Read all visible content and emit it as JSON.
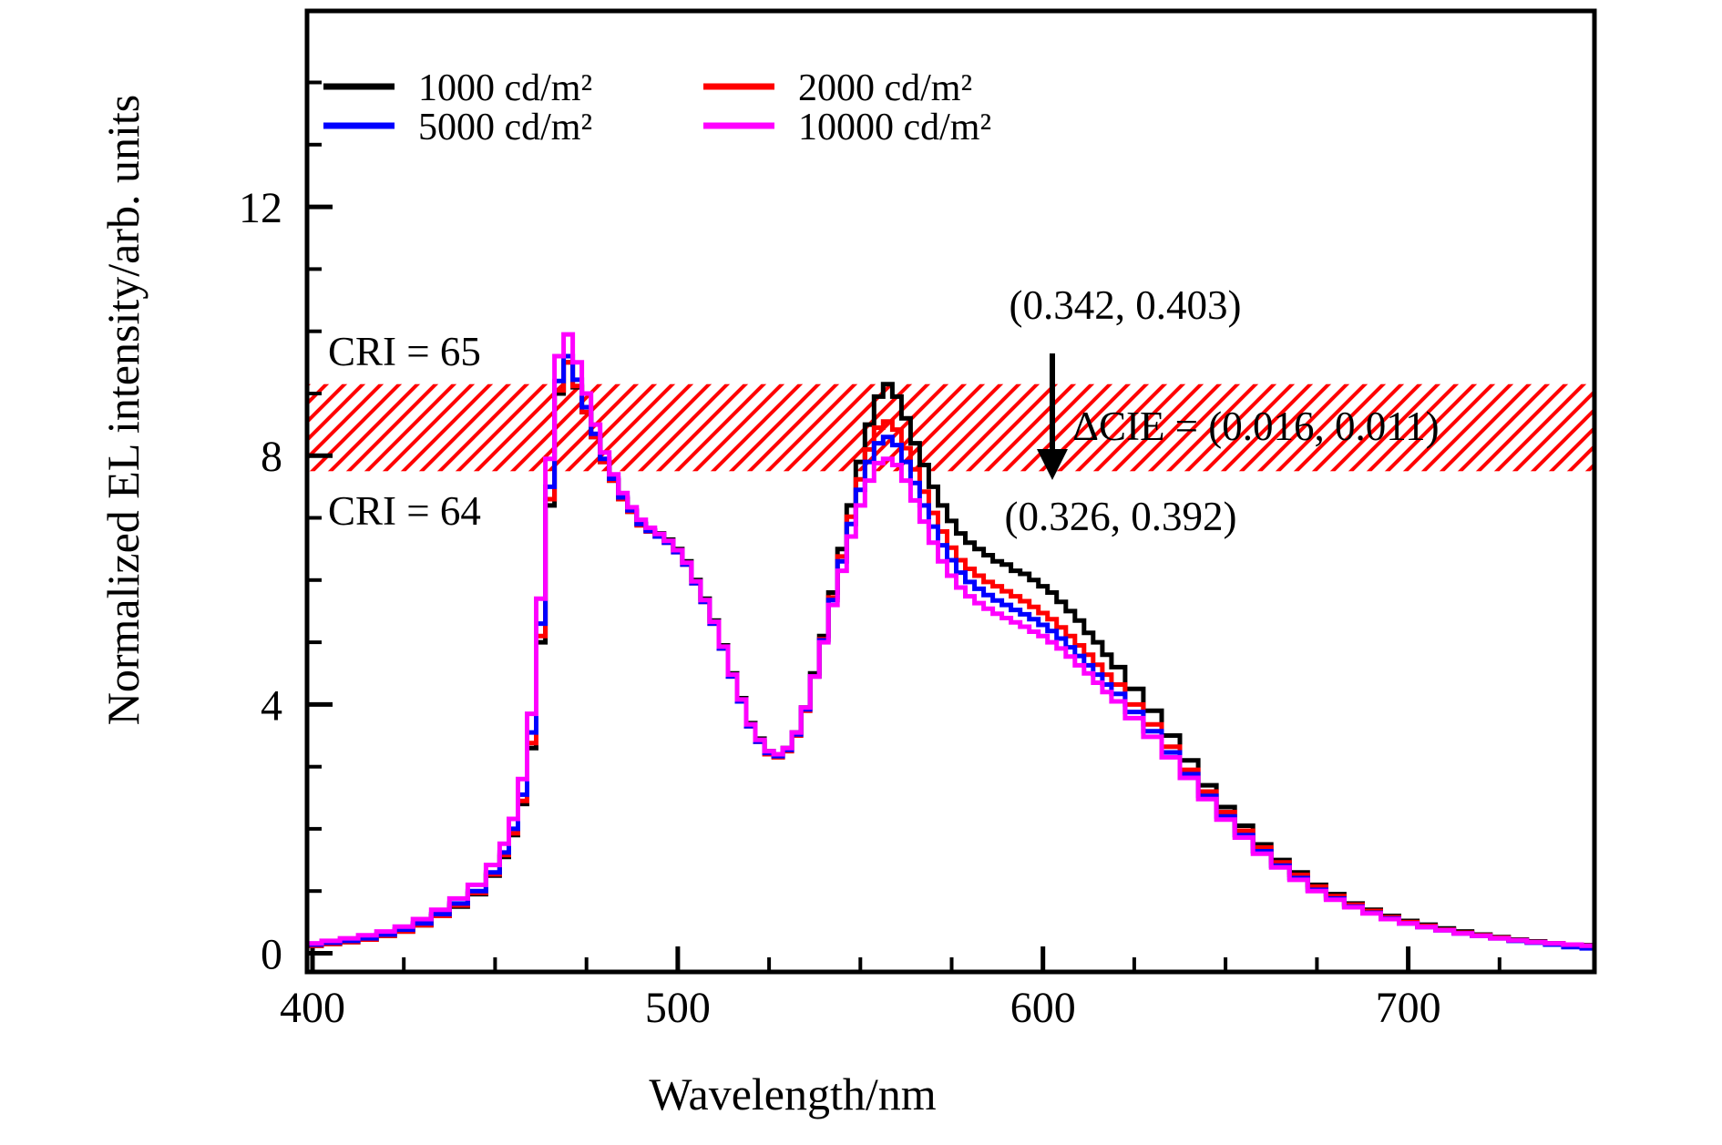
{
  "chart_data": {
    "type": "line",
    "title": "",
    "xlabel": "Wavelength/nm",
    "ylabel": "Normalized EL intensity/arb. units",
    "xlim": [
      398.5,
      751
    ],
    "ylim": [
      -0.3,
      15.15
    ],
    "x_major_ticks": [
      400,
      500,
      600,
      700
    ],
    "x_minor_step": 25,
    "y_major_ticks": [
      0,
      4,
      8,
      12
    ],
    "y_minor_step": 1,
    "grid": false,
    "legend_position": "top-left-inside",
    "x": [
      400,
      405,
      410,
      415,
      420,
      425,
      430,
      435,
      440,
      445,
      450,
      452.5,
      455,
      457.5,
      460,
      462.5,
      465,
      467.5,
      470,
      472.5,
      475,
      477.5,
      480,
      482.5,
      485,
      487.5,
      490,
      492.5,
      495,
      497.5,
      500,
      502.5,
      505,
      507.5,
      510,
      512.5,
      515,
      517.5,
      520,
      522.5,
      525,
      527.5,
      530,
      532.5,
      535,
      537.5,
      540,
      542.5,
      545,
      547.5,
      550,
      552.5,
      555,
      557.5,
      560,
      562.5,
      565,
      567.5,
      570,
      572.5,
      575,
      577.5,
      580,
      582.5,
      585,
      587.5,
      590,
      592.5,
      595,
      597.5,
      600,
      602.5,
      605,
      607.5,
      610,
      612.5,
      615,
      617.5,
      620,
      625,
      630,
      635,
      640,
      645,
      650,
      655,
      660,
      665,
      670,
      675,
      680,
      685,
      690,
      695,
      700,
      705,
      710,
      715,
      720,
      725,
      730,
      735,
      740,
      745,
      750
    ],
    "series": [
      {
        "name": "1000 cd/m²",
        "color": "#000000",
        "values": [
          0.12,
          0.15,
          0.18,
          0.22,
          0.28,
          0.35,
          0.45,
          0.6,
          0.75,
          0.95,
          1.25,
          1.55,
          1.9,
          2.4,
          3.3,
          5.0,
          7.2,
          9.0,
          9.5,
          9.1,
          8.7,
          8.3,
          7.9,
          7.6,
          7.3,
          7.1,
          6.9,
          6.8,
          6.75,
          6.65,
          6.5,
          6.3,
          6.0,
          5.7,
          5.35,
          4.95,
          4.5,
          4.1,
          3.7,
          3.45,
          3.25,
          3.2,
          3.3,
          3.55,
          3.95,
          4.5,
          5.1,
          5.8,
          6.5,
          7.2,
          7.9,
          8.5,
          8.95,
          9.15,
          8.95,
          8.6,
          8.2,
          7.85,
          7.5,
          7.2,
          6.95,
          6.75,
          6.6,
          6.5,
          6.4,
          6.3,
          6.25,
          6.15,
          6.1,
          6.0,
          5.9,
          5.8,
          5.65,
          5.5,
          5.35,
          5.15,
          5.0,
          4.8,
          4.6,
          4.25,
          3.9,
          3.5,
          3.1,
          2.7,
          2.35,
          2.05,
          1.75,
          1.5,
          1.3,
          1.1,
          0.95,
          0.8,
          0.7,
          0.6,
          0.52,
          0.46,
          0.4,
          0.35,
          0.3,
          0.26,
          0.22,
          0.19,
          0.16,
          0.14,
          0.13
        ]
      },
      {
        "name": "2000 cd/m²",
        "color": "#ff0000",
        "values": [
          0.12,
          0.15,
          0.18,
          0.22,
          0.28,
          0.35,
          0.45,
          0.6,
          0.77,
          0.97,
          1.27,
          1.58,
          1.93,
          2.45,
          3.38,
          5.1,
          7.3,
          9.05,
          9.5,
          9.12,
          8.7,
          8.3,
          7.9,
          7.6,
          7.3,
          7.1,
          6.88,
          6.78,
          6.7,
          6.6,
          6.45,
          6.25,
          5.95,
          5.65,
          5.3,
          4.9,
          4.45,
          4.05,
          3.65,
          3.4,
          3.2,
          3.15,
          3.25,
          3.5,
          3.9,
          4.45,
          5.05,
          5.72,
          6.38,
          7.02,
          7.62,
          8.1,
          8.45,
          8.55,
          8.42,
          8.12,
          7.78,
          7.42,
          7.08,
          6.78,
          6.52,
          6.32,
          6.18,
          6.07,
          5.97,
          5.9,
          5.82,
          5.74,
          5.66,
          5.57,
          5.47,
          5.37,
          5.24,
          5.1,
          4.95,
          4.8,
          4.64,
          4.48,
          4.32,
          4.0,
          3.68,
          3.32,
          2.95,
          2.6,
          2.27,
          1.97,
          1.7,
          1.46,
          1.26,
          1.07,
          0.92,
          0.78,
          0.68,
          0.58,
          0.5,
          0.44,
          0.38,
          0.33,
          0.29,
          0.25,
          0.21,
          0.18,
          0.155,
          0.135,
          0.12
        ]
      },
      {
        "name": "5000 cd/m²",
        "color": "#0000ff",
        "values": [
          0.14,
          0.17,
          0.2,
          0.24,
          0.3,
          0.38,
          0.48,
          0.63,
          0.8,
          1.0,
          1.3,
          1.62,
          2.0,
          2.55,
          3.55,
          5.3,
          7.5,
          9.2,
          9.6,
          9.22,
          8.78,
          8.35,
          7.95,
          7.63,
          7.33,
          7.12,
          6.9,
          6.79,
          6.7,
          6.6,
          6.45,
          6.25,
          5.95,
          5.65,
          5.3,
          4.9,
          4.45,
          4.05,
          3.65,
          3.4,
          3.22,
          3.17,
          3.27,
          3.52,
          3.92,
          4.45,
          5.03,
          5.68,
          6.3,
          6.9,
          7.45,
          7.9,
          8.2,
          8.3,
          8.17,
          7.9,
          7.56,
          7.2,
          6.86,
          6.56,
          6.32,
          6.12,
          5.97,
          5.86,
          5.76,
          5.67,
          5.6,
          5.52,
          5.45,
          5.37,
          5.28,
          5.18,
          5.06,
          4.92,
          4.78,
          4.63,
          4.48,
          4.32,
          4.17,
          3.88,
          3.57,
          3.23,
          2.88,
          2.53,
          2.2,
          1.9,
          1.64,
          1.41,
          1.21,
          1.02,
          0.88,
          0.75,
          0.65,
          0.56,
          0.48,
          0.42,
          0.37,
          0.32,
          0.28,
          0.24,
          0.2,
          0.17,
          0.14,
          0.1,
          0.08
        ]
      },
      {
        "name": "10000 cd/m²",
        "color": "#ff00ff",
        "values": [
          0.16,
          0.2,
          0.24,
          0.29,
          0.35,
          0.43,
          0.55,
          0.7,
          0.88,
          1.1,
          1.42,
          1.76,
          2.16,
          2.8,
          3.85,
          5.7,
          7.95,
          9.6,
          9.95,
          9.5,
          9.0,
          8.5,
          8.05,
          7.7,
          7.4,
          7.17,
          6.97,
          6.84,
          6.74,
          6.63,
          6.48,
          6.28,
          5.98,
          5.68,
          5.33,
          4.93,
          4.48,
          4.08,
          3.68,
          3.43,
          3.25,
          3.2,
          3.3,
          3.55,
          3.95,
          4.45,
          5.0,
          5.6,
          6.15,
          6.7,
          7.2,
          7.6,
          7.88,
          7.95,
          7.85,
          7.6,
          7.28,
          6.94,
          6.6,
          6.3,
          6.07,
          5.88,
          5.74,
          5.63,
          5.54,
          5.46,
          5.39,
          5.32,
          5.25,
          5.17,
          5.1,
          5.0,
          4.9,
          4.77,
          4.63,
          4.5,
          4.35,
          4.2,
          4.05,
          3.78,
          3.48,
          3.15,
          2.82,
          2.48,
          2.15,
          1.86,
          1.6,
          1.38,
          1.18,
          1.0,
          0.86,
          0.74,
          0.64,
          0.55,
          0.48,
          0.42,
          0.37,
          0.32,
          0.28,
          0.24,
          0.21,
          0.18,
          0.16,
          0.14,
          0.12
        ]
      }
    ],
    "band": {
      "y_from": 7.75,
      "y_to": 9.15,
      "color": "#ff0000",
      "style": "diagonal-hatch"
    },
    "annotations": {
      "cri_top": "CRI = 65",
      "cri_bottom": "CRI = 64",
      "cie_top": "(0.342, 0.403)",
      "cie_bottom": "(0.326, 0.392)",
      "delta_cie": "ΔCIE = (0.016, 0.011)",
      "arrow_x_nm": 602.5
    },
    "x_tick_labels": [
      "400",
      "500",
      "600",
      "700"
    ],
    "y_tick_labels": [
      "0",
      "4",
      "8",
      "12"
    ]
  }
}
